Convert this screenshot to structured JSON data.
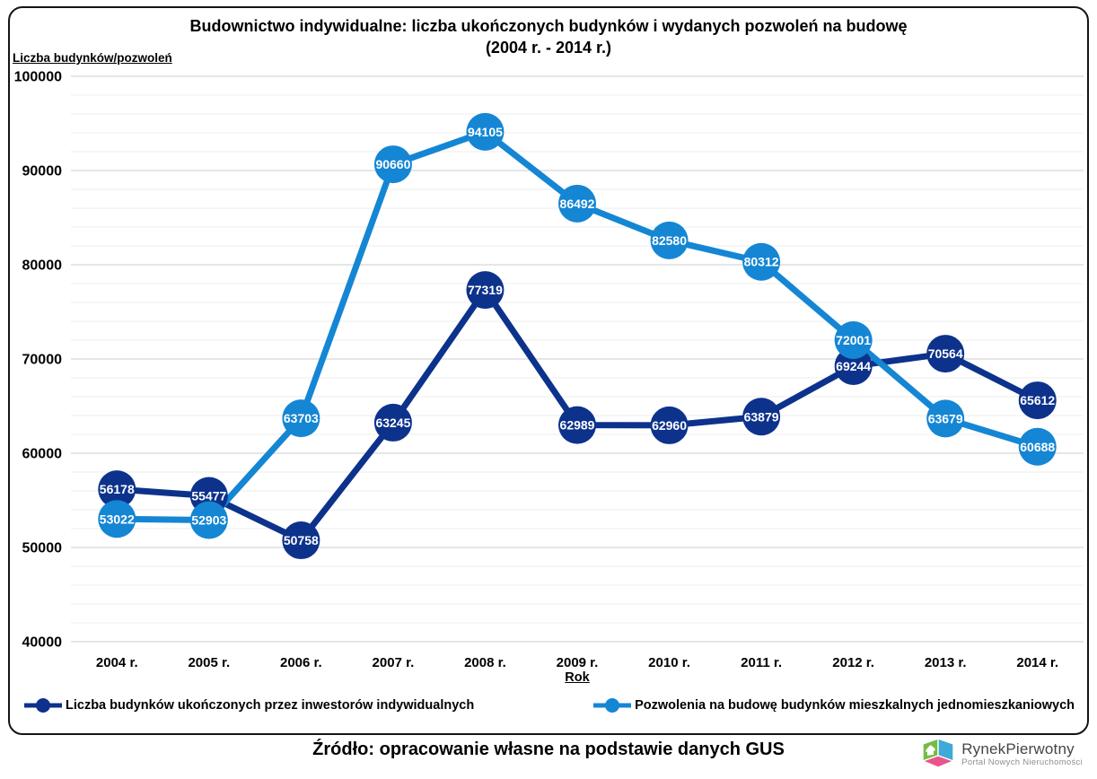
{
  "header": {
    "title_line1": "Budownictwo indywidualne: liczba ukończonych budynków i wydanych pozwoleń na budowę",
    "title_line2": "(2004 r. - 2014 r.)"
  },
  "chart_data": {
    "type": "line",
    "title": "Budownictwo indywidualne: liczba ukończonych budynków i wydanych pozwoleń na budowę (2004 r. - 2014 r.)",
    "y_axis_title": "Liczba budynków/pozwoleń",
    "x_axis_title": "Rok",
    "categories": [
      "2004 r.",
      "2005 r.",
      "2006 r.",
      "2007 r.",
      "2008 r.",
      "2009 r.",
      "2010 r.",
      "2011 r.",
      "2012 r.",
      "2013 r.",
      "2014 r."
    ],
    "series": [
      {
        "name": "Liczba budynków ukończonych przez inwestorów indywidualnych",
        "color": "#0D328C",
        "values": [
          56178,
          55477,
          50758,
          63245,
          77319,
          62989,
          62960,
          63879,
          69244,
          70564,
          65612
        ]
      },
      {
        "name": "Pozwolenia na budowę budynków mieszkalnych jednomieszkaniowych",
        "color": "#1486D4",
        "values": [
          53022,
          52903,
          63703,
          90660,
          94105,
          86492,
          82580,
          80312,
          72001,
          63679,
          60688
        ]
      }
    ],
    "y_min": 40000,
    "y_max": 100000,
    "y_major_step": 10000,
    "y_minor_step": 2000,
    "grid": {
      "major_color": "#D6D6D6",
      "minor_color": "#EDEDED"
    },
    "data_labels": true,
    "legend_position": "bottom"
  },
  "footer": {
    "source": "Źródło: opracowanie własne na podstawie danych GUS"
  },
  "logo": {
    "name": "RynekPierwotny",
    "tagline": "Portal Nowych Nieruchomości",
    "colors": {
      "green": "#76BC43",
      "blue": "#3FA9D8",
      "pink": "#E8558C"
    }
  }
}
